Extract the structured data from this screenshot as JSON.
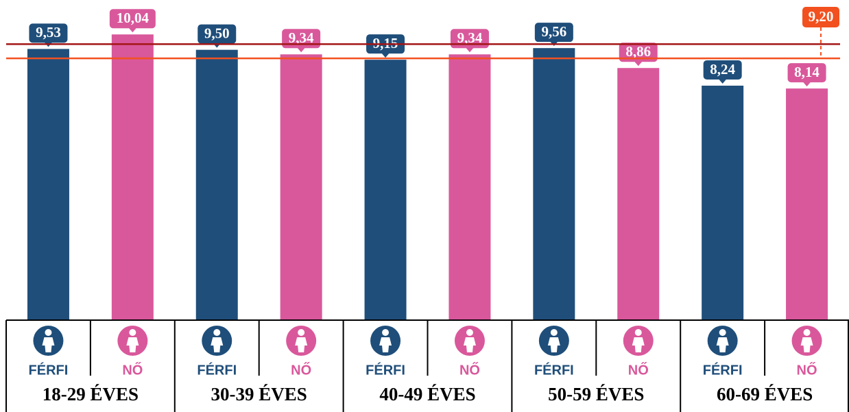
{
  "chart_data": {
    "type": "bar",
    "groups": [
      "18-29 ÉVES",
      "30-39 ÉVES",
      "40-49 ÉVES",
      "50-59 ÉVES",
      "60-69 ÉVES"
    ],
    "categories": [
      "FÉRFI",
      "NŐ",
      "FÉRFI",
      "NŐ",
      "FÉRFI",
      "NŐ",
      "FÉRFI",
      "NŐ",
      "FÉRFI",
      "NŐ"
    ],
    "values": [
      9.53,
      10.04,
      9.5,
      9.34,
      9.15,
      9.34,
      9.56,
      8.86,
      8.24,
      8.14
    ],
    "value_labels": [
      "9,53",
      "10,04",
      "9,50",
      "9,34",
      "9,15",
      "9,34",
      "9,56",
      "8,86",
      "8,24",
      "8,14"
    ],
    "colors": [
      "#1f4e7a",
      "#d9589b",
      "#1f4e7a",
      "#d9589b",
      "#1f4e7a",
      "#d9589b",
      "#1f4e7a",
      "#d9589b",
      "#1f4e7a",
      "#d9589b"
    ],
    "ylim": [
      0,
      11.25
    ],
    "reference_lines": [
      {
        "value": 9.7,
        "color": "#a31515"
      },
      {
        "value": 9.2,
        "label": "9,20",
        "color": "#f2501e"
      }
    ]
  }
}
